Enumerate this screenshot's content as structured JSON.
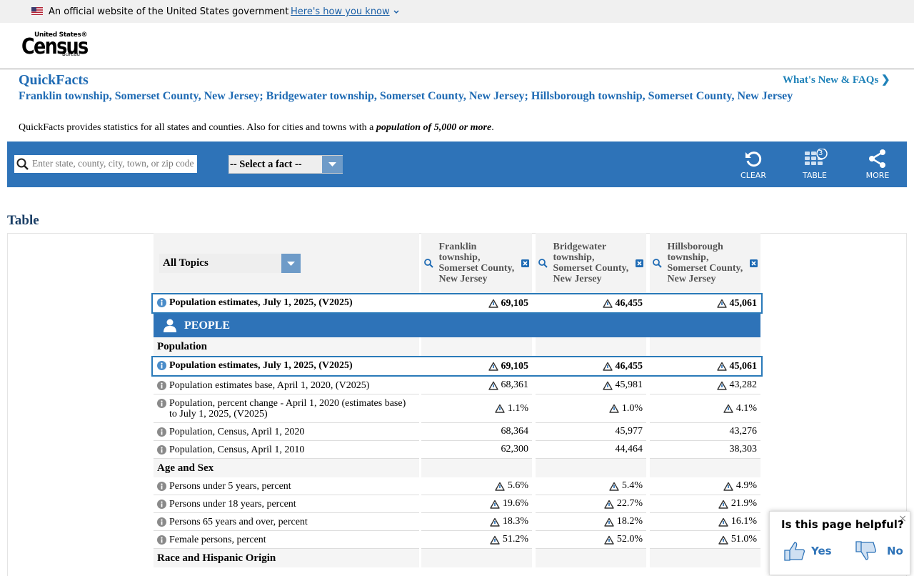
{
  "banner": {
    "text": "An official website of the United States government",
    "link": "Here's how you know"
  },
  "logo": {
    "top": "United States®",
    "main": "Census",
    "bottom": "Bureau"
  },
  "header": {
    "title": "QuickFacts",
    "whats_new": "What's New & FAQs",
    "places": "Franklin township, Somerset County, New Jersey; Bridgewater township, Somerset County, New Jersey; Hillsborough township, Somerset County, New Jersey",
    "description_start": "QuickFacts provides statistics for all states and counties. Also for cities and towns with a ",
    "description_emphasis": "population of 5,000 or more",
    "description_end": "."
  },
  "toolbar": {
    "search_placeholder": "Enter state, county, city, town, or zip code",
    "select_fact": "-- Select a fact --",
    "clear": "CLEAR",
    "table": "TABLE",
    "table_count": "3",
    "more": "MORE"
  },
  "table": {
    "heading": "Table",
    "topics": "All Topics",
    "columns": [
      "Franklin township, Somerset County, New Jersey",
      "Bridgewater township, Somerset County, New Jersey",
      "Hillsborough township, Somerset County, New Jersey"
    ],
    "headline": {
      "label": "Population estimates, July 1, 2025, (V2025)",
      "values": [
        "69,105",
        "46,455",
        "45,061"
      ]
    },
    "sections": [
      {
        "title": "PEOPLE",
        "groups": [
          {
            "title": "Population",
            "rows": [
              {
                "label": "Population estimates, July 1, 2025, (V2025)",
                "values": [
                  "69,105",
                  "46,455",
                  "45,061"
                ],
                "flagged": true,
                "highlighted": true
              },
              {
                "label": "Population estimates base, April 1, 2020, (V2025)",
                "values": [
                  "68,361",
                  "45,981",
                  "43,282"
                ],
                "flagged": true,
                "highlighted": false
              },
              {
                "label": "Population, percent change - April 1, 2020 (estimates base) to July 1, 2025, (V2025)",
                "values": [
                  "1.1%",
                  "1.0%",
                  "4.1%"
                ],
                "flagged": true,
                "highlighted": false
              },
              {
                "label": "Population, Census, April 1, 2020",
                "values": [
                  "68,364",
                  "45,977",
                  "43,276"
                ],
                "flagged": false,
                "highlighted": false
              },
              {
                "label": "Population, Census, April 1, 2010",
                "values": [
                  "62,300",
                  "44,464",
                  "38,303"
                ],
                "flagged": false,
                "highlighted": false
              }
            ]
          },
          {
            "title": "Age and Sex",
            "rows": [
              {
                "label": "Persons under 5 years, percent",
                "values": [
                  "5.6%",
                  "5.4%",
                  "4.9%"
                ],
                "flagged": true,
                "highlighted": false
              },
              {
                "label": "Persons under 18 years, percent",
                "values": [
                  "19.6%",
                  "22.7%",
                  "21.9%"
                ],
                "flagged": true,
                "highlighted": false
              },
              {
                "label": "Persons 65 years and over, percent",
                "values": [
                  "18.3%",
                  "18.2%",
                  "16.1%"
                ],
                "flagged": true,
                "highlighted": false
              },
              {
                "label": "Female persons, percent",
                "values": [
                  "51.2%",
                  "52.0%",
                  "51.0%"
                ],
                "flagged": true,
                "highlighted": false
              }
            ]
          },
          {
            "title": "Race and Hispanic Origin",
            "rows": []
          }
        ]
      }
    ]
  },
  "feedback": {
    "question": "Is this page helpful?",
    "yes": "Yes",
    "no": "No"
  }
}
